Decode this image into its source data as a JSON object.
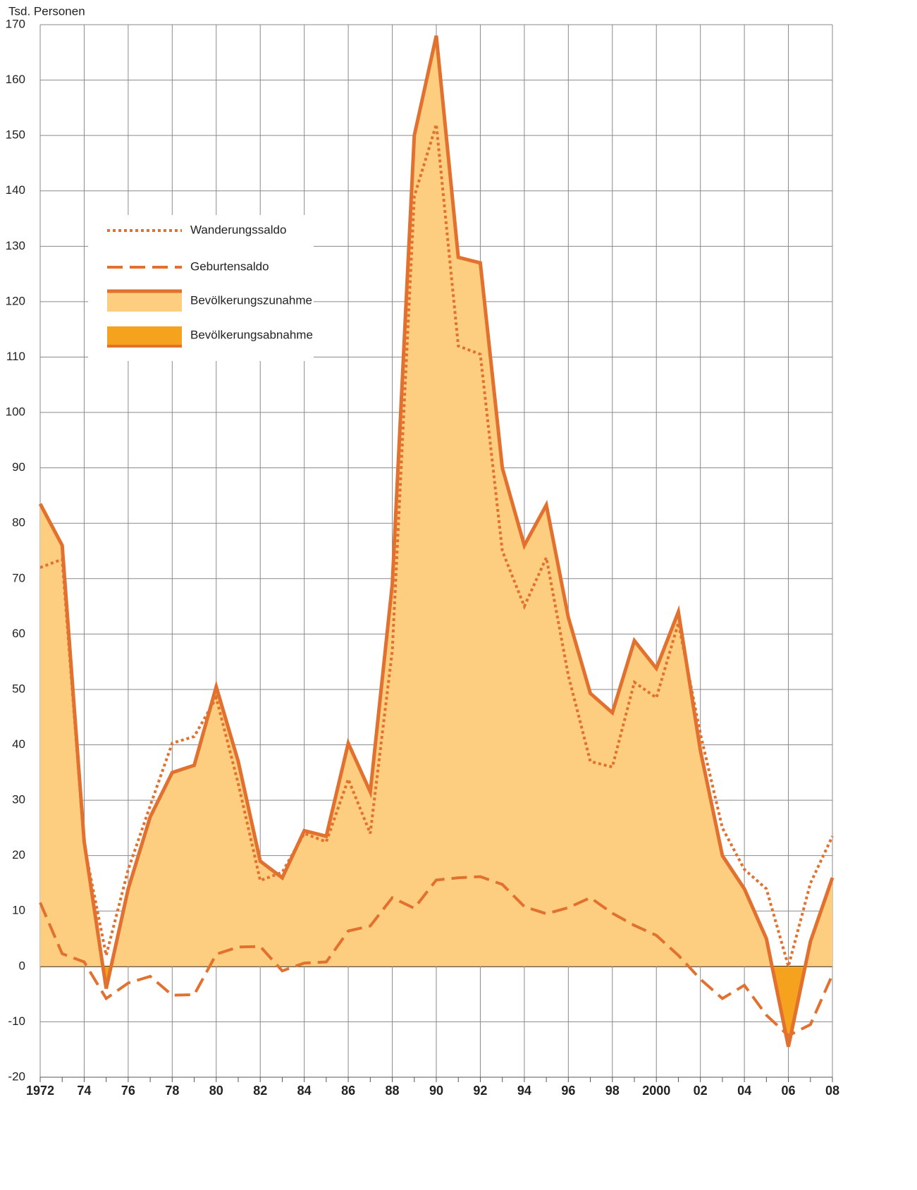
{
  "chart_data": {
    "type": "line",
    "y_label": "Tsd. Personen",
    "categories": [
      "1972",
      null,
      "74",
      null,
      "76",
      null,
      "78",
      null,
      "80",
      null,
      "82",
      null,
      "84",
      null,
      "86",
      null,
      "88",
      null,
      "90",
      null,
      "92",
      null,
      "94",
      null,
      "96",
      null,
      "98",
      null,
      "2000",
      null,
      "02",
      null,
      "04",
      null,
      "06",
      null,
      "08"
    ],
    "series": [
      {
        "name": "Wanderungssaldo",
        "color": "#e2712f",
        "style": "dotted",
        "values": [
          72,
          73.5,
          22,
          2,
          17.5,
          29,
          40.3,
          41.5,
          48.5,
          33,
          15.5,
          17,
          24,
          22.5,
          33.8,
          24,
          57,
          139,
          152,
          112,
          110.5,
          75,
          65,
          73.8,
          52.5,
          37,
          36,
          51.3,
          48.5,
          62,
          42,
          25,
          17.5,
          14,
          0,
          15,
          23.5
        ]
      },
      {
        "name": "Geburtensaldo",
        "color": "#e2712f",
        "style": "dashed",
        "values": [
          11.5,
          2.3,
          0.8,
          -5.8,
          -3,
          -1.8,
          -5.2,
          -5.1,
          2.2,
          3.5,
          3.6,
          -0.8,
          0.6,
          0.8,
          6.4,
          7.3,
          12.4,
          10.5,
          15.6,
          16,
          16.2,
          14.8,
          10.8,
          9.5,
          10.6,
          12.4,
          9.6,
          7.4,
          5.6,
          2,
          -2.3,
          -5.8,
          -3.4,
          -8.8,
          -12.5,
          -10.5,
          -1.5
        ]
      },
      {
        "name": "Bevölkerungszunahme",
        "color": "#e2712f",
        "style": "solid",
        "fill": "#fdcd80",
        "negative_name": "Bevölkerungsabnahme",
        "negative_fill": "#f5a31e",
        "values": [
          83.5,
          76,
          22.5,
          -4,
          14,
          27,
          35,
          36.3,
          50.5,
          37,
          19,
          16,
          24.5,
          23.5,
          40.3,
          31.5,
          69,
          150,
          168,
          128,
          127,
          90,
          76,
          83.3,
          63,
          49.3,
          45.8,
          58.8,
          53.8,
          64,
          39,
          20,
          14,
          5,
          -14.5,
          4.5,
          16
        ]
      }
    ],
    "ylim": [
      -20,
      170
    ],
    "yticks": [
      -20,
      -10,
      0,
      10,
      20,
      30,
      40,
      50,
      60,
      70,
      80,
      90,
      100,
      110,
      120,
      130,
      140,
      150,
      160,
      170
    ],
    "grid": true
  }
}
